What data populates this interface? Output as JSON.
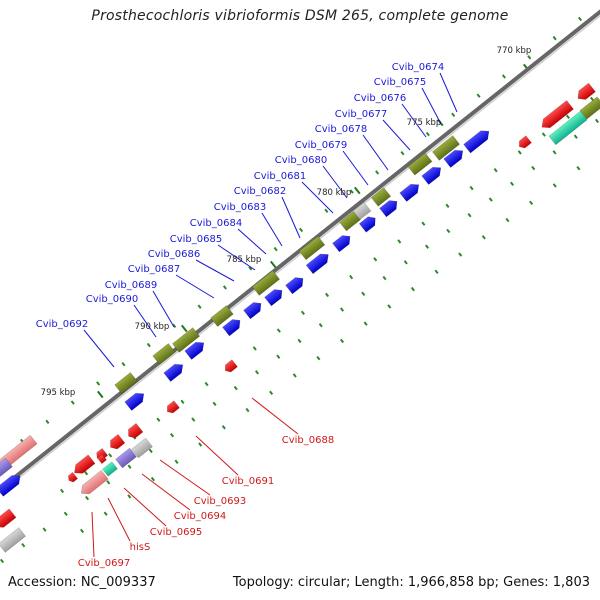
{
  "title": "Prosthecochloris vibrioformis DSM 265, complete genome",
  "footer": {
    "accession": "Accession: NC_009337",
    "topology": "Topology: circular; Length: 1,966,858 bp; Genes: 1,803"
  },
  "kbp_labels": [
    "770 kbp",
    "775 kbp",
    "780 kbp",
    "785 kbp",
    "790 kbp",
    "795 kbp"
  ],
  "blue_genes": [
    "Cvib_0674",
    "Cvib_0675",
    "Cvib_0676",
    "Cvib_0677",
    "Cvib_0678",
    "Cvib_0679",
    "Cvib_0680",
    "Cvib_0681",
    "Cvib_0682",
    "Cvib_0683",
    "Cvib_0684",
    "Cvib_0685",
    "Cvib_0686",
    "Cvib_0687",
    "Cvib_0689",
    "Cvib_0690",
    "Cvib_0692"
  ],
  "red_genes": [
    "Cvib_0688",
    "Cvib_0691",
    "Cvib_0693",
    "Cvib_0694",
    "Cvib_0695",
    "hisS",
    "Cvib_0697"
  ],
  "colors": {
    "forward_cds": "#1414dc",
    "cog_olive": "#7a8f28",
    "reverse_cds": "#e41a1a",
    "light_red": "#f08a8a",
    "teal": "#20c8a0",
    "gray": "#b8b8b8",
    "lavender": "#8a7ad0",
    "backbone": "#888888",
    "label_blue": "#1a1ad6",
    "label_red": "#d01818"
  }
}
